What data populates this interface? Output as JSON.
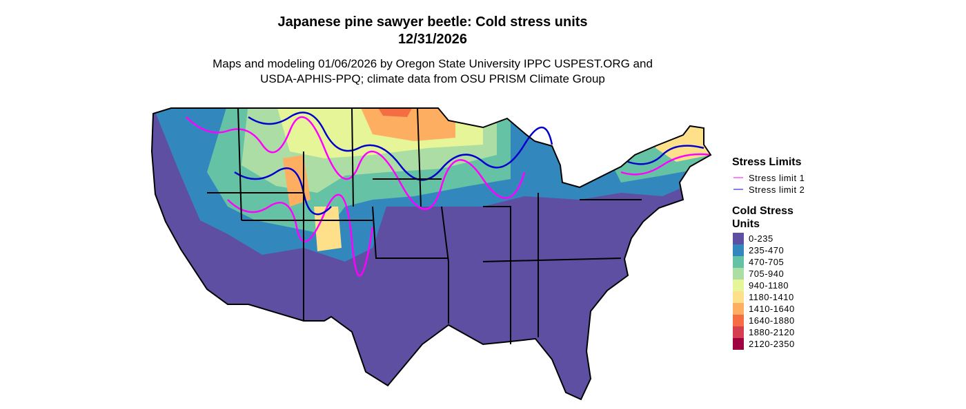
{
  "title": {
    "lines": [
      "Japanese pine sawyer beetle: Cold stress units",
      "12/31/2026"
    ]
  },
  "subtitle": {
    "lines": [
      "Maps and modeling 01/06/2026 by Oregon State University IPPC USPEST.ORG and",
      "USDA-APHIS-PPQ; climate data from OSU PRISM Climate Group"
    ]
  },
  "legend": {
    "stress_limits": {
      "title": "Stress Limits",
      "items": [
        {
          "label": "Stress limit 1",
          "color": "#ff00ff"
        },
        {
          "label": "Stress limit 2",
          "color": "#0000cd"
        }
      ]
    },
    "cold_stress_units": {
      "title_lines": [
        "Cold Stress",
        "Units"
      ],
      "items": [
        {
          "label": "0-235",
          "color": "#5e4fa2"
        },
        {
          "label": "235-470",
          "color": "#3288bd"
        },
        {
          "label": "470-705",
          "color": "#66c2a5"
        },
        {
          "label": "705-940",
          "color": "#abdda4"
        },
        {
          "label": "940-1180",
          "color": "#e6f598"
        },
        {
          "label": "1180-1410",
          "color": "#fee08b"
        },
        {
          "label": "1410-1640",
          "color": "#fdae61"
        },
        {
          "label": "1640-1880",
          "color": "#f46d43"
        },
        {
          "label": "1880-2120",
          "color": "#d53e4f"
        },
        {
          "label": "2120-2350",
          "color": "#9e0142"
        }
      ]
    }
  }
}
